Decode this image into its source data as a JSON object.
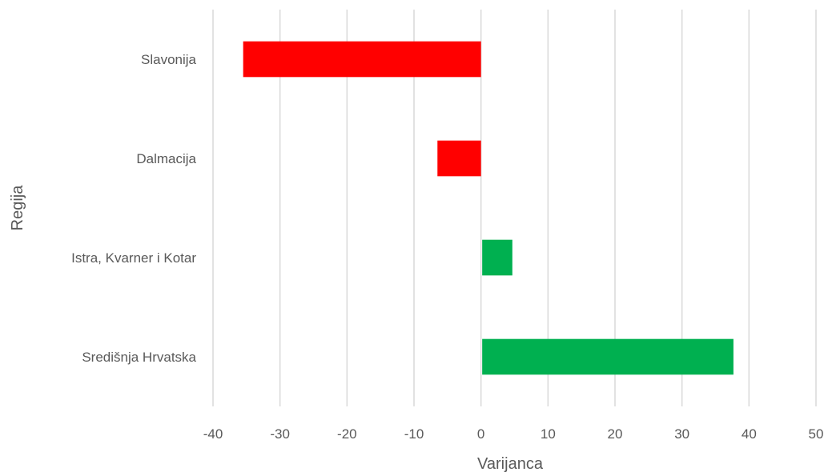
{
  "chart_data": {
    "type": "bar",
    "orientation": "horizontal",
    "categories": [
      "Slavonija",
      "Dalmacija",
      "Istra, Kvarner i Kotar",
      "Središnja Hrvatska"
    ],
    "values": [
      -35.5,
      -6.5,
      4.5,
      37.5
    ],
    "xlabel": "Varijanca",
    "ylabel": "Regija",
    "xlim": [
      -40,
      50
    ],
    "xticks": [
      -40,
      -30,
      -20,
      -10,
      0,
      10,
      20,
      30,
      40,
      50
    ],
    "grid": "vertical",
    "colors": {
      "negative": "#ff0000",
      "positive": "#00b050",
      "grid": "#d9d9d9",
      "text": "#595959"
    }
  }
}
